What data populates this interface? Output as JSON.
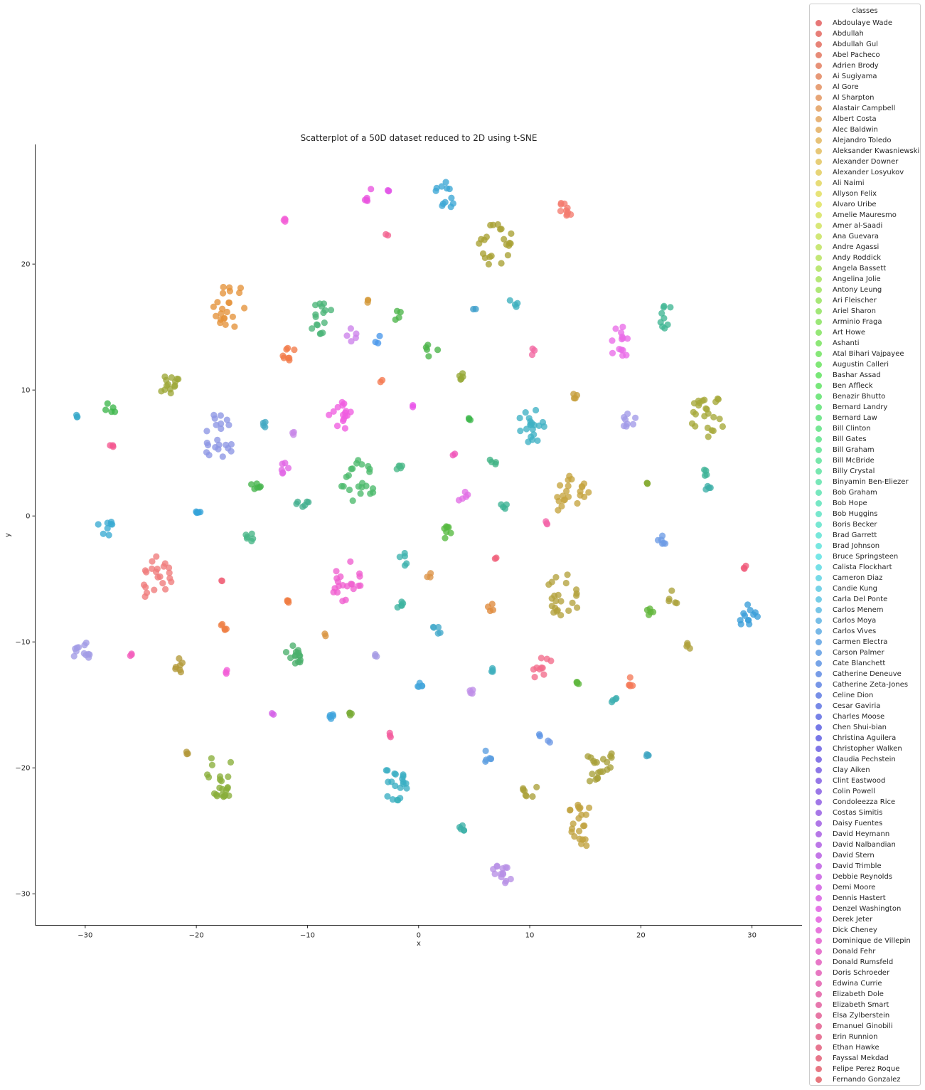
{
  "chart_data": {
    "type": "scatter",
    "title": "Scatterplot of a 50D dataset reduced to 2D using t-SNE",
    "xlabel": "x",
    "ylabel": "y",
    "xlim": [
      -34.5,
      34.5
    ],
    "ylim": [
      -32.5,
      29.5
    ],
    "xticks": [
      -30,
      -20,
      -10,
      0,
      10,
      20,
      30
    ],
    "yticks": [
      20,
      10,
      0,
      -10,
      -20,
      -30
    ],
    "grid": false,
    "legend": {
      "title": "classes",
      "placement": "outside-right"
    },
    "classes": [
      "Abdoulaye Wade",
      "Abdullah",
      "Abdullah Gul",
      "Abel Pacheco",
      "Adrien Brody",
      "Ai Sugiyama",
      "Al Gore",
      "Al Sharpton",
      "Alastair Campbell",
      "Albert Costa",
      "Alec Baldwin",
      "Alejandro Toledo",
      "Aleksander Kwasniewski",
      "Alexander Downer",
      "Alexander Losyukov",
      "Ali Naimi",
      "Allyson Felix",
      "Alvaro Uribe",
      "Amelie Mauresmo",
      "Amer al-Saadi",
      "Ana Guevara",
      "Andre Agassi",
      "Andy Roddick",
      "Angela Bassett",
      "Angelina Jolie",
      "Antony Leung",
      "Ari Fleischer",
      "Ariel Sharon",
      "Arminio Fraga",
      "Art Howe",
      "Ashanti",
      "Atal Bihari Vajpayee",
      "Augustin Calleri",
      "Bashar Assad",
      "Ben Affleck",
      "Benazir Bhutto",
      "Bernard Landry",
      "Bernard Law",
      "Bill Clinton",
      "Bill Gates",
      "Bill Graham",
      "Bill McBride",
      "Billy Crystal",
      "Binyamin Ben-Eliezer",
      "Bob Graham",
      "Bob Hope",
      "Bob Huggins",
      "Boris Becker",
      "Brad Garrett",
      "Brad Johnson",
      "Bruce Springsteen",
      "Calista Flockhart",
      "Cameron Diaz",
      "Candie Kung",
      "Carla Del Ponte",
      "Carlos Menem",
      "Carlos Moya",
      "Carlos Vives",
      "Carmen Electra",
      "Carson Palmer",
      "Cate Blanchett",
      "Catherine Deneuve",
      "Catherine Zeta-Jones",
      "Celine Dion",
      "Cesar Gaviria",
      "Charles Moose",
      "Chen Shui-bian",
      "Christina Aguilera",
      "Christopher Walken",
      "Claudia Pechstein",
      "Clay Aiken",
      "Clint Eastwood",
      "Colin Powell",
      "Condoleezza Rice",
      "Costas Simitis",
      "Daisy Fuentes",
      "David Heymann",
      "David Nalbandian",
      "David Stern",
      "David Trimble",
      "Debbie Reynolds",
      "Demi Moore",
      "Dennis Hastert",
      "Denzel Washington",
      "Derek Jeter",
      "Dick Cheney",
      "Dominique de Villepin",
      "Donald Fehr",
      "Donald Rumsfeld",
      "Doris Schroeder",
      "Edwina Currie",
      "Elizabeth Dole",
      "Elizabeth Smart",
      "Elsa Zylberstein",
      "Emanuel Ginobili",
      "Erin Runnion",
      "Ethan Hawke",
      "Fayssal Mekdad",
      "Felipe Perez Roque",
      "Fernando Gonzalez"
    ],
    "clusters": [
      {
        "cx": -4.5,
        "cy": 25.5,
        "n": 5,
        "spread": 0.3,
        "color": "#e955df"
      },
      {
        "cx": -2.7,
        "cy": 25.9,
        "n": 3,
        "spread": 0.1,
        "color": "#e358e8"
      },
      {
        "cx": 2.2,
        "cy": 25.4,
        "n": 12,
        "spread": 0.7,
        "color": "#3ca7d5"
      },
      {
        "cx": 13.5,
        "cy": 24.4,
        "n": 10,
        "spread": 0.5,
        "color": "#f37b6e"
      },
      {
        "cx": -12.0,
        "cy": 23.4,
        "n": 4,
        "spread": 0.2,
        "color": "#f360d7"
      },
      {
        "cx": -2.8,
        "cy": 22.4,
        "n": 2,
        "spread": 0.1,
        "color": "#f2638f"
      },
      {
        "cx": 7.0,
        "cy": 21.5,
        "n": 22,
        "spread": 1.0,
        "color": "#a8a032"
      },
      {
        "cx": -17.0,
        "cy": 16.8,
        "n": 22,
        "spread": 1.0,
        "color": "#e4923a"
      },
      {
        "cx": -4.6,
        "cy": 17.1,
        "n": 3,
        "spread": 0.1,
        "color": "#d59a3b"
      },
      {
        "cx": -2.0,
        "cy": 15.9,
        "n": 4,
        "spread": 0.3,
        "color": "#4db54a"
      },
      {
        "cx": -8.5,
        "cy": 15.6,
        "n": 16,
        "spread": 0.8,
        "color": "#4cb578"
      },
      {
        "cx": 5.0,
        "cy": 16.5,
        "n": 2,
        "spread": 0.1,
        "color": "#3c9ecb"
      },
      {
        "cx": 8.6,
        "cy": 16.8,
        "n": 4,
        "spread": 0.3,
        "color": "#3cb0be"
      },
      {
        "cx": 22.3,
        "cy": 15.8,
        "n": 9,
        "spread": 0.5,
        "color": "#40b693"
      },
      {
        "cx": -6.0,
        "cy": 14.4,
        "n": 5,
        "spread": 0.3,
        "color": "#cc82ea"
      },
      {
        "cx": 18.2,
        "cy": 13.8,
        "n": 14,
        "spread": 0.7,
        "color": "#e96ce8"
      },
      {
        "cx": -3.5,
        "cy": 13.8,
        "n": 3,
        "spread": 0.3,
        "color": "#4997ea"
      },
      {
        "cx": -11.8,
        "cy": 13.0,
        "n": 8,
        "spread": 0.4,
        "color": "#f27a48"
      },
      {
        "cx": 1.2,
        "cy": 13.3,
        "n": 5,
        "spread": 0.4,
        "color": "#4ab348"
      },
      {
        "cx": 10.3,
        "cy": 13.1,
        "n": 3,
        "spread": 0.2,
        "color": "#f268a1"
      },
      {
        "cx": 3.7,
        "cy": 11.1,
        "n": 5,
        "spread": 0.2,
        "color": "#95a836"
      },
      {
        "cx": -3.4,
        "cy": 10.8,
        "n": 2,
        "spread": 0.1,
        "color": "#f57850"
      },
      {
        "cx": -22.5,
        "cy": 10.7,
        "n": 14,
        "spread": 0.6,
        "color": "#9ea838"
      },
      {
        "cx": 14.2,
        "cy": 9.5,
        "n": 4,
        "spread": 0.2,
        "color": "#c59e3a"
      },
      {
        "cx": -0.5,
        "cy": 8.7,
        "n": 2,
        "spread": 0.1,
        "color": "#e953e9"
      },
      {
        "cx": -7.0,
        "cy": 7.9,
        "n": 16,
        "spread": 0.7,
        "color": "#ef5de0"
      },
      {
        "cx": -27.7,
        "cy": 8.5,
        "n": 5,
        "spread": 0.3,
        "color": "#3eb64b"
      },
      {
        "cx": 26.0,
        "cy": 8.0,
        "n": 24,
        "spread": 1.0,
        "color": "#a5a838"
      },
      {
        "cx": -30.8,
        "cy": 7.9,
        "n": 3,
        "spread": 0.1,
        "color": "#38a9c9"
      },
      {
        "cx": 10.3,
        "cy": 7.4,
        "n": 20,
        "spread": 0.9,
        "color": "#3fb1c4"
      },
      {
        "cx": 4.6,
        "cy": 7.6,
        "n": 3,
        "spread": 0.1,
        "color": "#3fb74d"
      },
      {
        "cx": 19.0,
        "cy": 7.5,
        "n": 8,
        "spread": 0.4,
        "color": "#a19ae8"
      },
      {
        "cx": -13.9,
        "cy": 7.2,
        "n": 4,
        "spread": 0.2,
        "color": "#42a9c3"
      },
      {
        "cx": -18.1,
        "cy": 6.3,
        "n": 22,
        "spread": 1.0,
        "color": "#8d96e4"
      },
      {
        "cx": -11.2,
        "cy": 6.6,
        "n": 3,
        "spread": 0.1,
        "color": "#c888e8"
      },
      {
        "cx": -27.6,
        "cy": 5.6,
        "n": 3,
        "spread": 0.1,
        "color": "#f3578f"
      },
      {
        "cx": 3.2,
        "cy": 4.8,
        "n": 2,
        "spread": 0.1,
        "color": "#f053b8"
      },
      {
        "cx": -1.8,
        "cy": 4.0,
        "n": 5,
        "spread": 0.2,
        "color": "#4ab888"
      },
      {
        "cx": -12.1,
        "cy": 3.9,
        "n": 6,
        "spread": 0.3,
        "color": "#e266e5"
      },
      {
        "cx": 6.7,
        "cy": 4.3,
        "n": 4,
        "spread": 0.2,
        "color": "#41b485"
      },
      {
        "cx": -5.4,
        "cy": 2.8,
        "n": 22,
        "spread": 1.0,
        "color": "#4cba6b"
      },
      {
        "cx": 25.7,
        "cy": 3.5,
        "n": 4,
        "spread": 0.3,
        "color": "#3fb497"
      },
      {
        "cx": 20.6,
        "cy": 2.7,
        "n": 3,
        "spread": 0.1,
        "color": "#86ac35"
      },
      {
        "cx": 26.0,
        "cy": 2.3,
        "n": 4,
        "spread": 0.2,
        "color": "#3db0a8"
      },
      {
        "cx": -14.6,
        "cy": 2.6,
        "n": 6,
        "spread": 0.3,
        "color": "#44b34a"
      },
      {
        "cx": 13.8,
        "cy": 1.5,
        "n": 22,
        "spread": 1.0,
        "color": "#c5a43f"
      },
      {
        "cx": 4.0,
        "cy": 1.5,
        "n": 5,
        "spread": 0.3,
        "color": "#e16ee6"
      },
      {
        "cx": -10.4,
        "cy": 1.0,
        "n": 6,
        "spread": 0.4,
        "color": "#43b08e"
      },
      {
        "cx": 7.8,
        "cy": 1.1,
        "n": 4,
        "spread": 0.3,
        "color": "#3bb294"
      },
      {
        "cx": -19.8,
        "cy": 0.3,
        "n": 5,
        "spread": 0.3,
        "color": "#34a3d9"
      },
      {
        "cx": -28.2,
        "cy": -1.0,
        "n": 8,
        "spread": 0.5,
        "color": "#3aabd2"
      },
      {
        "cx": 11.5,
        "cy": -0.6,
        "n": 3,
        "spread": 0.1,
        "color": "#f465a9"
      },
      {
        "cx": -15.2,
        "cy": -1.7,
        "n": 6,
        "spread": 0.3,
        "color": "#46b686"
      },
      {
        "cx": 2.6,
        "cy": -1.3,
        "n": 7,
        "spread": 0.3,
        "color": "#56ba40"
      },
      {
        "cx": 21.8,
        "cy": -2.0,
        "n": 6,
        "spread": 0.3,
        "color": "#6e9ce5"
      },
      {
        "cx": -1.3,
        "cy": -3.4,
        "n": 5,
        "spread": 0.3,
        "color": "#3db2ae"
      },
      {
        "cx": 7.0,
        "cy": -3.3,
        "n": 2,
        "spread": 0.1,
        "color": "#f05d78"
      },
      {
        "cx": -23.8,
        "cy": -4.9,
        "n": 22,
        "spread": 1.0,
        "color": "#ef7b7b"
      },
      {
        "cx": -6.5,
        "cy": -5.2,
        "n": 20,
        "spread": 0.9,
        "color": "#ef5fcf"
      },
      {
        "cx": -17.6,
        "cy": -5.1,
        "n": 2,
        "spread": 0.1,
        "color": "#f0647a"
      },
      {
        "cx": 1.0,
        "cy": -4.9,
        "n": 3,
        "spread": 0.2,
        "color": "#dc9448"
      },
      {
        "cx": 29.4,
        "cy": -4.1,
        "n": 3,
        "spread": 0.1,
        "color": "#f05a7a"
      },
      {
        "cx": 13.0,
        "cy": -6.4,
        "n": 22,
        "spread": 1.0,
        "color": "#b3a23c"
      },
      {
        "cx": 23.0,
        "cy": -6.4,
        "n": 5,
        "spread": 0.4,
        "color": "#aaa23a"
      },
      {
        "cx": -11.8,
        "cy": -6.8,
        "n": 4,
        "spread": 0.1,
        "color": "#f07c42"
      },
      {
        "cx": -1.7,
        "cy": -7.0,
        "n": 5,
        "spread": 0.2,
        "color": "#3eb3a0"
      },
      {
        "cx": 6.5,
        "cy": -7.3,
        "n": 4,
        "spread": 0.2,
        "color": "#df8a3c"
      },
      {
        "cx": 20.8,
        "cy": -7.7,
        "n": 5,
        "spread": 0.2,
        "color": "#61b63b"
      },
      {
        "cx": 29.8,
        "cy": -8.0,
        "n": 12,
        "spread": 0.6,
        "color": "#3a9dd8"
      },
      {
        "cx": -17.6,
        "cy": -8.9,
        "n": 5,
        "spread": 0.2,
        "color": "#ee7d42"
      },
      {
        "cx": 1.7,
        "cy": -9.0,
        "n": 5,
        "spread": 0.3,
        "color": "#42a9cb"
      },
      {
        "cx": -8.4,
        "cy": -9.5,
        "n": 2,
        "spread": 0.1,
        "color": "#d8943f"
      },
      {
        "cx": 24.3,
        "cy": -10.2,
        "n": 4,
        "spread": 0.2,
        "color": "#b0a13c"
      },
      {
        "cx": -30.3,
        "cy": -10.8,
        "n": 12,
        "spread": 0.5,
        "color": "#a19be5"
      },
      {
        "cx": -25.9,
        "cy": -11.0,
        "n": 3,
        "spread": 0.1,
        "color": "#f35fbc"
      },
      {
        "cx": -11.3,
        "cy": -11.2,
        "n": 14,
        "spread": 0.5,
        "color": "#4ab06c"
      },
      {
        "cx": -3.9,
        "cy": -11.1,
        "n": 3,
        "spread": 0.1,
        "color": "#a79ce4"
      },
      {
        "cx": -21.4,
        "cy": -12.0,
        "n": 7,
        "spread": 0.4,
        "color": "#b49a3a"
      },
      {
        "cx": 11.1,
        "cy": -12.0,
        "n": 10,
        "spread": 0.6,
        "color": "#f26c8a"
      },
      {
        "cx": 6.6,
        "cy": -12.2,
        "n": 4,
        "spread": 0.1,
        "color": "#3fb0be"
      },
      {
        "cx": -17.2,
        "cy": -12.4,
        "n": 3,
        "spread": 0.1,
        "color": "#f25ed7"
      },
      {
        "cx": 14.3,
        "cy": -13.2,
        "n": 4,
        "spread": 0.1,
        "color": "#5fb73e"
      },
      {
        "cx": 18.9,
        "cy": -13.2,
        "n": 5,
        "spread": 0.3,
        "color": "#f57a58"
      },
      {
        "cx": -0.1,
        "cy": -13.6,
        "n": 5,
        "spread": 0.3,
        "color": "#42a5db"
      },
      {
        "cx": 4.6,
        "cy": -13.9,
        "n": 4,
        "spread": 0.2,
        "color": "#bf8ee8"
      },
      {
        "cx": 17.5,
        "cy": -14.6,
        "n": 4,
        "spread": 0.2,
        "color": "#3db0b1"
      },
      {
        "cx": -13.2,
        "cy": -15.7,
        "n": 2,
        "spread": 0.1,
        "color": "#d35fe7"
      },
      {
        "cx": -6.1,
        "cy": -15.7,
        "n": 4,
        "spread": 0.1,
        "color": "#7aac37"
      },
      {
        "cx": -7.8,
        "cy": -16.0,
        "n": 5,
        "spread": 0.2,
        "color": "#3fa4dc"
      },
      {
        "cx": -2.6,
        "cy": -17.4,
        "n": 3,
        "spread": 0.1,
        "color": "#f35c9e"
      },
      {
        "cx": 10.9,
        "cy": -17.5,
        "n": 2,
        "spread": 0.1,
        "color": "#5e95e6"
      },
      {
        "cx": 11.8,
        "cy": -17.8,
        "n": 2,
        "spread": 0.1,
        "color": "#6f9ae6"
      },
      {
        "cx": -20.9,
        "cy": -18.8,
        "n": 3,
        "spread": 0.1,
        "color": "#b3983a"
      },
      {
        "cx": 6.1,
        "cy": -19.2,
        "n": 6,
        "spread": 0.3,
        "color": "#5b9de0"
      },
      {
        "cx": 20.6,
        "cy": -19.1,
        "n": 4,
        "spread": 0.1,
        "color": "#42a7c3"
      },
      {
        "cx": 16.4,
        "cy": -19.9,
        "n": 20,
        "spread": 0.9,
        "color": "#a8a03a"
      },
      {
        "cx": -17.8,
        "cy": -20.7,
        "n": 22,
        "spread": 1.0,
        "color": "#89ae3a"
      },
      {
        "cx": -2.1,
        "cy": -21.2,
        "n": 18,
        "spread": 0.8,
        "color": "#3aaec3"
      },
      {
        "cx": 9.9,
        "cy": -21.5,
        "n": 7,
        "spread": 0.5,
        "color": "#aaa03a"
      },
      {
        "cx": -1.8,
        "cy": -22.5,
        "n": 2,
        "spread": 0.1,
        "color": "#3ab1bb"
      },
      {
        "cx": 14.7,
        "cy": -24.6,
        "n": 22,
        "spread": 1.0,
        "color": "#c0a23e"
      },
      {
        "cx": 3.9,
        "cy": -24.9,
        "n": 5,
        "spread": 0.2,
        "color": "#3bb0a6"
      },
      {
        "cx": 7.4,
        "cy": -28.7,
        "n": 14,
        "spread": 0.6,
        "color": "#b790e6"
      }
    ]
  }
}
